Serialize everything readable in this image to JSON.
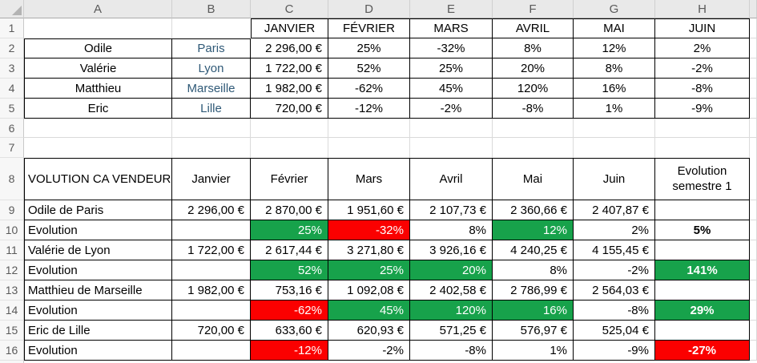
{
  "app": "spreadsheet",
  "colors": {
    "positive_fill": "#17A24B",
    "negative_fill": "#FB0000",
    "city_text": "#2F5977"
  },
  "column_headers": [
    "A",
    "B",
    "C",
    "D",
    "E",
    "F",
    "G",
    "H"
  ],
  "row_headers": [
    "1",
    "2",
    "3",
    "4",
    "5",
    "6",
    "7",
    "8",
    "9",
    "10",
    "11",
    "12",
    "13",
    "14",
    "15",
    "16"
  ],
  "sheet": {
    "rows": [
      {
        "cells": [
          {},
          {},
          {
            "t": "JANVIER",
            "a": "c"
          },
          {
            "t": "FÉVRIER",
            "a": "c"
          },
          {
            "t": "MARS",
            "a": "c"
          },
          {
            "t": "AVRIL",
            "a": "c"
          },
          {
            "t": "MAI",
            "a": "c"
          },
          {
            "t": "JUIN",
            "a": "c"
          }
        ]
      },
      {
        "cells": [
          {
            "t": "Odile",
            "a": "c"
          },
          {
            "t": "Paris",
            "a": "c",
            "cl": "city"
          },
          {
            "t": "2 296,00 €",
            "a": "r"
          },
          {
            "t": "25%",
            "a": "c"
          },
          {
            "t": "-32%",
            "a": "c"
          },
          {
            "t": "8%",
            "a": "c"
          },
          {
            "t": "12%",
            "a": "c"
          },
          {
            "t": "2%",
            "a": "c"
          }
        ]
      },
      {
        "cells": [
          {
            "t": "Valérie",
            "a": "c"
          },
          {
            "t": "Lyon",
            "a": "c",
            "cl": "city"
          },
          {
            "t": "1 722,00 €",
            "a": "r"
          },
          {
            "t": "52%",
            "a": "c"
          },
          {
            "t": "25%",
            "a": "c"
          },
          {
            "t": "20%",
            "a": "c"
          },
          {
            "t": "8%",
            "a": "c"
          },
          {
            "t": "-2%",
            "a": "c"
          }
        ]
      },
      {
        "cells": [
          {
            "t": "Matthieu",
            "a": "c"
          },
          {
            "t": "Marseille",
            "a": "c",
            "cl": "city"
          },
          {
            "t": "1 982,00 €",
            "a": "r"
          },
          {
            "t": "-62%",
            "a": "c"
          },
          {
            "t": "45%",
            "a": "c"
          },
          {
            "t": "120%",
            "a": "c"
          },
          {
            "t": "16%",
            "a": "c"
          },
          {
            "t": "-8%",
            "a": "c"
          }
        ]
      },
      {
        "cells": [
          {
            "t": "Eric",
            "a": "c"
          },
          {
            "t": "Lille",
            "a": "c",
            "cl": "city"
          },
          {
            "t": "720,00 €",
            "a": "r"
          },
          {
            "t": "-12%",
            "a": "c"
          },
          {
            "t": "-2%",
            "a": "c"
          },
          {
            "t": "-8%",
            "a": "c"
          },
          {
            "t": "1%",
            "a": "c"
          },
          {
            "t": "-9%",
            "a": "c"
          }
        ]
      },
      {
        "cells": [
          {},
          {},
          {},
          {},
          {},
          {},
          {},
          {}
        ]
      },
      {
        "cells": [
          {},
          {},
          {},
          {},
          {},
          {},
          {},
          {}
        ]
      },
      {
        "cells": [
          {
            "t": "VOLUTION CA VENDEUR",
            "a": "l"
          },
          {
            "t": "Janvier",
            "a": "c"
          },
          {
            "t": "Février",
            "a": "c"
          },
          {
            "t": "Mars",
            "a": "c"
          },
          {
            "t": "Avril",
            "a": "c"
          },
          {
            "t": "Mai",
            "a": "c"
          },
          {
            "t": "Juin",
            "a": "c"
          },
          {
            "t": "Evolution semestre 1",
            "a": "c",
            "wrap": 1
          }
        ]
      },
      {
        "cells": [
          {
            "t": "Odile de Paris",
            "a": "l"
          },
          {
            "t": "2 296,00 €",
            "a": "r"
          },
          {
            "t": "2 870,00 €",
            "a": "r"
          },
          {
            "t": "1 951,60 €",
            "a": "r"
          },
          {
            "t": "2 107,73 €",
            "a": "r"
          },
          {
            "t": "2 360,66 €",
            "a": "r"
          },
          {
            "t": "2 407,87 €",
            "a": "r"
          },
          {}
        ]
      },
      {
        "cells": [
          {
            "t": "Evolution",
            "a": "l"
          },
          {},
          {
            "t": "25%",
            "a": "r",
            "f": "g"
          },
          {
            "t": "-32%",
            "a": "r",
            "f": "r"
          },
          {
            "t": "8%",
            "a": "r"
          },
          {
            "t": "12%",
            "a": "r",
            "f": "g"
          },
          {
            "t": "2%",
            "a": "r"
          },
          {
            "t": "5%",
            "a": "c",
            "b": 1
          }
        ]
      },
      {
        "cells": [
          {
            "t": "Valérie de Lyon",
            "a": "l"
          },
          {
            "t": "1 722,00 €",
            "a": "r"
          },
          {
            "t": "2 617,44 €",
            "a": "r"
          },
          {
            "t": "3 271,80 €",
            "a": "r"
          },
          {
            "t": "3 926,16 €",
            "a": "r"
          },
          {
            "t": "4 240,25 €",
            "a": "r"
          },
          {
            "t": "4 155,45 €",
            "a": "r"
          },
          {}
        ]
      },
      {
        "cells": [
          {
            "t": "Evolution",
            "a": "l"
          },
          {},
          {
            "t": "52%",
            "a": "r",
            "f": "g"
          },
          {
            "t": "25%",
            "a": "r",
            "f": "g"
          },
          {
            "t": "20%",
            "a": "r",
            "f": "g"
          },
          {
            "t": "8%",
            "a": "r"
          },
          {
            "t": "-2%",
            "a": "r"
          },
          {
            "t": "141%",
            "a": "c",
            "f": "g",
            "b": 1
          }
        ]
      },
      {
        "cells": [
          {
            "t": "Matthieu de Marseille",
            "a": "l"
          },
          {
            "t": "1 982,00 €",
            "a": "r"
          },
          {
            "t": "753,16 €",
            "a": "r"
          },
          {
            "t": "1 092,08 €",
            "a": "r"
          },
          {
            "t": "2 402,58 €",
            "a": "r"
          },
          {
            "t": "2 786,99 €",
            "a": "r"
          },
          {
            "t": "2 564,03 €",
            "a": "r"
          },
          {}
        ]
      },
      {
        "cells": [
          {
            "t": "Evolution",
            "a": "l"
          },
          {},
          {
            "t": "-62%",
            "a": "r",
            "f": "r"
          },
          {
            "t": "45%",
            "a": "r",
            "f": "g"
          },
          {
            "t": "120%",
            "a": "r",
            "f": "g"
          },
          {
            "t": "16%",
            "a": "r",
            "f": "g"
          },
          {
            "t": "-8%",
            "a": "r"
          },
          {
            "t": "29%",
            "a": "c",
            "f": "g",
            "b": 1
          }
        ]
      },
      {
        "cells": [
          {
            "t": "Eric de Lille",
            "a": "l"
          },
          {
            "t": "720,00 €",
            "a": "r"
          },
          {
            "t": "633,60 €",
            "a": "r"
          },
          {
            "t": "620,93 €",
            "a": "r"
          },
          {
            "t": "571,25 €",
            "a": "r"
          },
          {
            "t": "576,97 €",
            "a": "r"
          },
          {
            "t": "525,04 €",
            "a": "r"
          },
          {}
        ]
      },
      {
        "cells": [
          {
            "t": "Evolution",
            "a": "l"
          },
          {},
          {
            "t": "-12%",
            "a": "r",
            "f": "r"
          },
          {
            "t": "-2%",
            "a": "r"
          },
          {
            "t": "-8%",
            "a": "r"
          },
          {
            "t": "1%",
            "a": "r"
          },
          {
            "t": "-9%",
            "a": "r"
          },
          {
            "t": "-27%",
            "a": "c",
            "f": "r",
            "b": 1
          }
        ]
      }
    ]
  }
}
